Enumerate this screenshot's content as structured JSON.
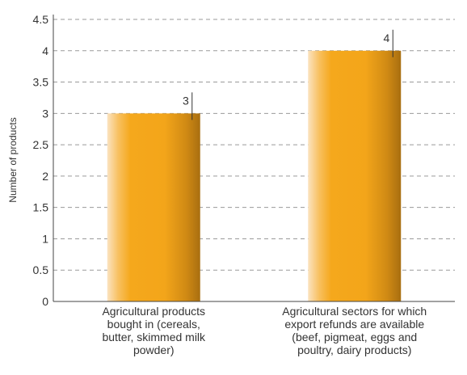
{
  "chart_data": {
    "type": "bar",
    "categories": [
      [
        "Agricultural products",
        "bought in (cereals,",
        "butter, skimmed milk",
        "powder)"
      ],
      [
        "Agricultural sectors for which",
        "export refunds are available",
        "(beef, pigmeat, eggs and",
        "poultry, dairy products)"
      ]
    ],
    "values": [
      3,
      4
    ],
    "data_labels": [
      "3",
      "4"
    ],
    "title": "",
    "xlabel": "",
    "ylabel": "Number of products",
    "ylim": [
      0,
      4.5
    ],
    "yticks": [
      "0",
      "0.5",
      "1",
      "1.5",
      "2",
      "2.5",
      "3",
      "3.5",
      "4",
      "4.5"
    ],
    "grid": true,
    "bar_color": "#f5a81c",
    "bar_shadow_color": "#a86e10",
    "grid_color": "#9a9a9a"
  }
}
